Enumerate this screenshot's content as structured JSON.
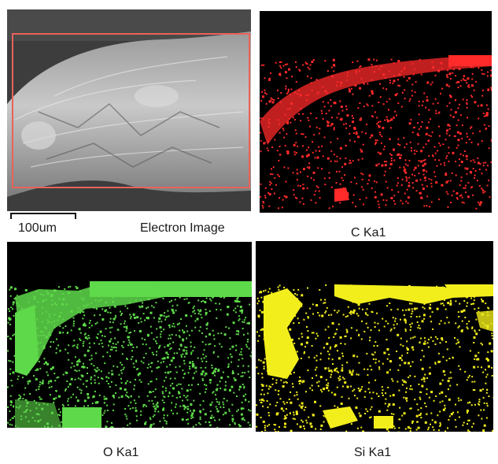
{
  "panels": {
    "electron_image": {
      "label": "Electron Image",
      "scale_bar_label": "100um"
    },
    "c_map": {
      "label": "C Ka1",
      "color": "#ff2a2a"
    },
    "o_map": {
      "label": "O Ka1",
      "color": "#5ed94a"
    },
    "si_map": {
      "label": "Si Ka1",
      "color": "#f2ee1c"
    }
  }
}
